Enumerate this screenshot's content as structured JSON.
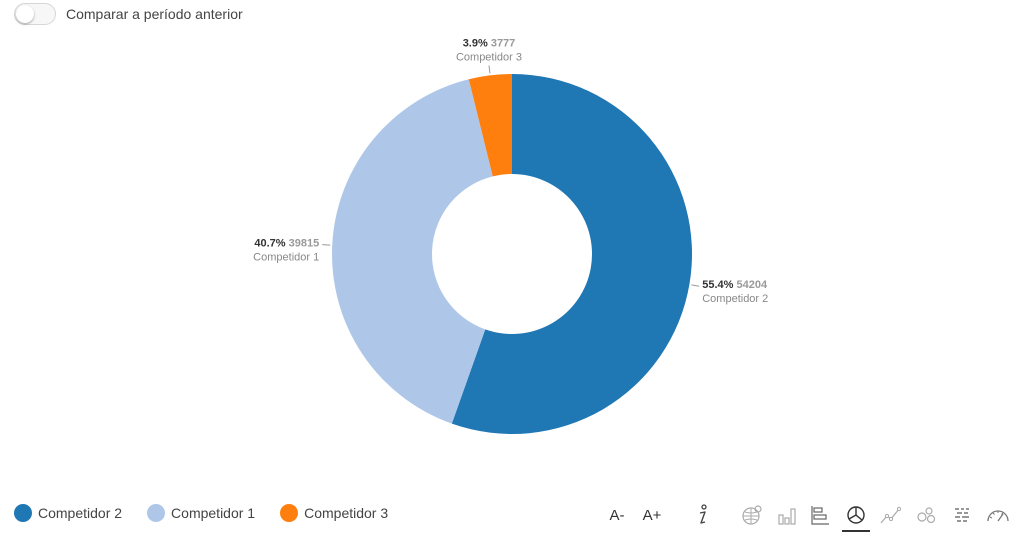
{
  "compare_toggle": {
    "label": "Comparar a período anterior",
    "checked": false
  },
  "chart_data": {
    "type": "pie",
    "variant": "donut",
    "slices": [
      {
        "name": "Competidor 2",
        "value": 54204,
        "percent": "55.4%",
        "color": "#1f77b4"
      },
      {
        "name": "Competidor 1",
        "value": 39815,
        "percent": "40.7%",
        "color": "#aec7e8"
      },
      {
        "name": "Competidor 3",
        "value": 3777,
        "percent": "3.9%",
        "color": "#ff7f0e"
      }
    ],
    "legend_position": "bottom-left"
  },
  "toolbar": {
    "font_decrease_label": "A-",
    "font_increase_label": "A+",
    "icons": [
      "info-icon",
      "map-chart-icon",
      "bar-chart-icon",
      "horizontal-bar-chart-icon",
      "pie-chart-icon",
      "line-chart-icon",
      "bubble-chart-icon",
      "heatmap-icon",
      "gauge-icon"
    ],
    "active": "pie-chart-icon"
  }
}
